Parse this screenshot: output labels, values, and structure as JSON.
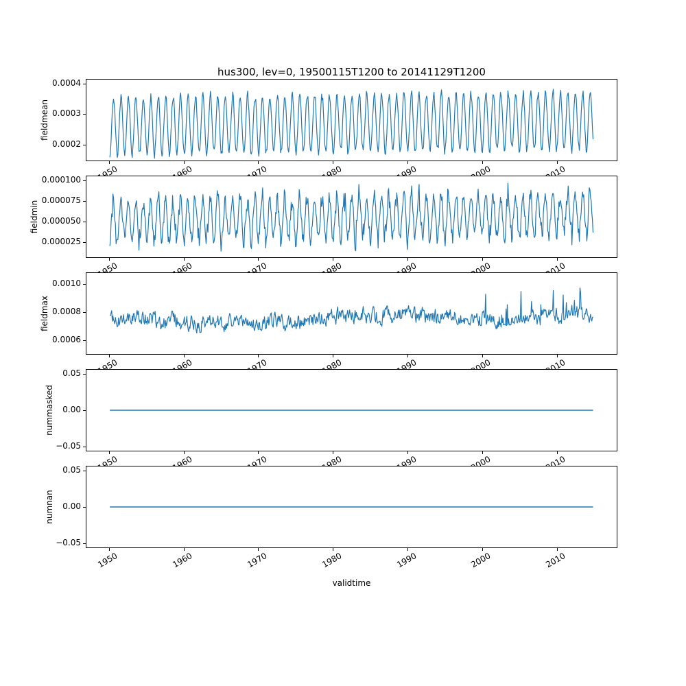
{
  "figure": {
    "title": "hus300, lev=0, 19500115T1200 to 20141129T1200",
    "xlabel": "validtime",
    "line_color": "#1f77b4",
    "background": "#ffffff",
    "axis_color": "#000000"
  },
  "chart_data": [
    {
      "type": "line",
      "ylabel": "fieldmean",
      "xlim": [
        1946.9,
        2018.1
      ],
      "x_ticks": [
        1950,
        1960,
        1970,
        1980,
        1990,
        2000,
        2010
      ],
      "x_tick_labels": [
        "1950",
        "1960",
        "1970",
        "1980",
        "1990",
        "2000",
        "2010"
      ],
      "ylim": [
        0.000145,
        0.000415
      ],
      "y_ticks": [
        0.0002,
        0.0003,
        0.0004
      ],
      "y_tick_labels": [
        "0.0002",
        "0.0003",
        "0.0004"
      ],
      "series": {
        "name": "fieldmean",
        "pattern": "seasonal",
        "x_start": 1950.04,
        "x_end": 2014.92,
        "n_points": 779,
        "base": 0.00026,
        "trend": 1.8e-05,
        "amplitude": 9.6e-05,
        "amp_jitter": 0.15,
        "peak_phase": 0.54,
        "noise": 4e-06,
        "value_range": [
          0.000148,
          0.000402
        ],
        "seed": 20
      }
    },
    {
      "type": "line",
      "ylabel": "fieldmin",
      "xlim": [
        1946.9,
        2018.1
      ],
      "x_ticks": [
        1950,
        1960,
        1970,
        1980,
        1990,
        2000,
        2010
      ],
      "x_tick_labels": [
        "1950",
        "1960",
        "1970",
        "1980",
        "1990",
        "2000",
        "2010"
      ],
      "ylim": [
        6e-06,
        0.000106
      ],
      "y_ticks": [
        2.5e-05,
        5e-05,
        7.5e-05,
        0.0001
      ],
      "y_tick_labels": [
        "0.000025",
        "0.000050",
        "0.000075",
        "0.000100"
      ],
      "series": {
        "name": "fieldmin",
        "pattern": "seasonal",
        "x_start": 1950.04,
        "x_end": 2014.92,
        "n_points": 779,
        "base": 5.1e-05,
        "trend": 8e-06,
        "amplitude": 2.6e-05,
        "amp_jitter": 0.4,
        "peak_phase": 0.52,
        "noise": 7.5e-06,
        "value_range": [
          9.5e-06,
          9.75e-05
        ],
        "seed": 77
      }
    },
    {
      "type": "line",
      "ylabel": "fieldmax",
      "xlim": [
        1946.9,
        2018.1
      ],
      "x_ticks": [
        1950,
        1960,
        1970,
        1980,
        1990,
        2000,
        2010
      ],
      "x_tick_labels": [
        "1950",
        "1960",
        "1970",
        "1980",
        "1990",
        "2000",
        "2010"
      ],
      "ylim": [
        0.000495,
        0.001085
      ],
      "y_ticks": [
        0.0006,
        0.0008,
        0.001
      ],
      "y_tick_labels": [
        "0.0006",
        "0.0008",
        "0.0010"
      ],
      "series": {
        "name": "fieldmax",
        "pattern": "noisy",
        "x_start": 1950.04,
        "x_end": 2014.92,
        "n_points": 779,
        "base": 0.00072,
        "trend": 6e-05,
        "wave_amp": 2.5e-05,
        "wave_period": 34,
        "ar": 0.5,
        "noise": 5e-05,
        "spike_prob": 0.03,
        "spike_min": 6e-05,
        "spike_span": 0.00014,
        "value_range": [
          0.00054,
          0.00106
        ],
        "seed": 41
      }
    },
    {
      "type": "line",
      "ylabel": "nummasked",
      "xlim": [
        1946.9,
        2018.1
      ],
      "x_ticks": [
        1950,
        1960,
        1970,
        1980,
        1990,
        2000,
        2010
      ],
      "x_tick_labels": [
        "1950",
        "1960",
        "1970",
        "1980",
        "1990",
        "2000",
        "2010"
      ],
      "ylim": [
        -0.0565,
        0.0565
      ],
      "y_ticks": [
        -0.05,
        0.0,
        0.05
      ],
      "y_tick_labels": [
        "−0.05",
        "0.00",
        "0.05"
      ],
      "series": {
        "name": "nummasked",
        "pattern": "constant",
        "x_start": 1950.04,
        "x_end": 2014.92,
        "n_points": 2,
        "value": 0.0,
        "seed": 1
      }
    },
    {
      "type": "line",
      "ylabel": "numnan",
      "xlim": [
        1946.9,
        2018.1
      ],
      "x_ticks": [
        1950,
        1960,
        1970,
        1980,
        1990,
        2000,
        2010
      ],
      "x_tick_labels": [
        "1950",
        "1960",
        "1970",
        "1980",
        "1990",
        "2000",
        "2010"
      ],
      "ylim": [
        -0.0565,
        0.0565
      ],
      "y_ticks": [
        -0.05,
        0.0,
        0.05
      ],
      "y_tick_labels": [
        "−0.05",
        "0.00",
        "0.05"
      ],
      "series": {
        "name": "numnan",
        "pattern": "constant",
        "x_start": 1950.04,
        "x_end": 2014.92,
        "n_points": 2,
        "value": 0.0,
        "seed": 1
      }
    }
  ]
}
